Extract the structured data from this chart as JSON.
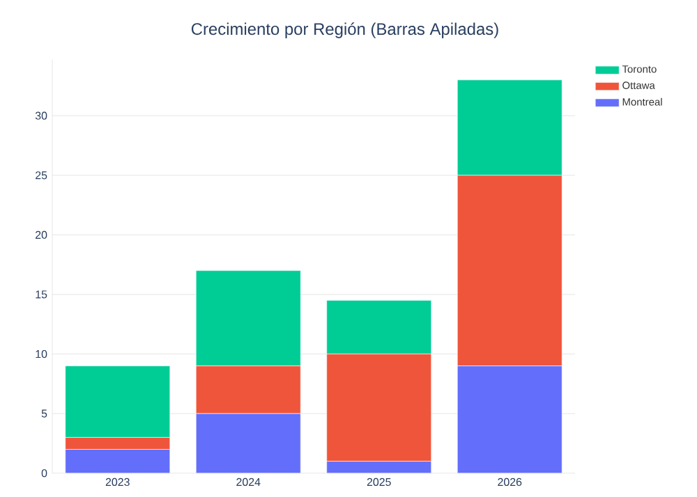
{
  "chart_data": {
    "type": "bar",
    "title": "Crecimiento por Región (Barras Apiladas)",
    "categories": [
      "2023",
      "2024",
      "2025",
      "2026"
    ],
    "stacked": true,
    "series": [
      {
        "name": "Montreal",
        "color": "#636efa",
        "values": [
          2,
          5,
          1,
          9
        ]
      },
      {
        "name": "Ottawa",
        "color": "#ef553b",
        "values": [
          1,
          4,
          9,
          16
        ]
      },
      {
        "name": "Toronto",
        "color": "#00cc96",
        "values": [
          6,
          8,
          4.5,
          8
        ]
      }
    ],
    "ylim": [
      0,
      34.7
    ],
    "yticks": [
      0,
      5,
      10,
      15,
      20,
      25,
      30
    ],
    "grid": "y",
    "legend": "top right"
  }
}
